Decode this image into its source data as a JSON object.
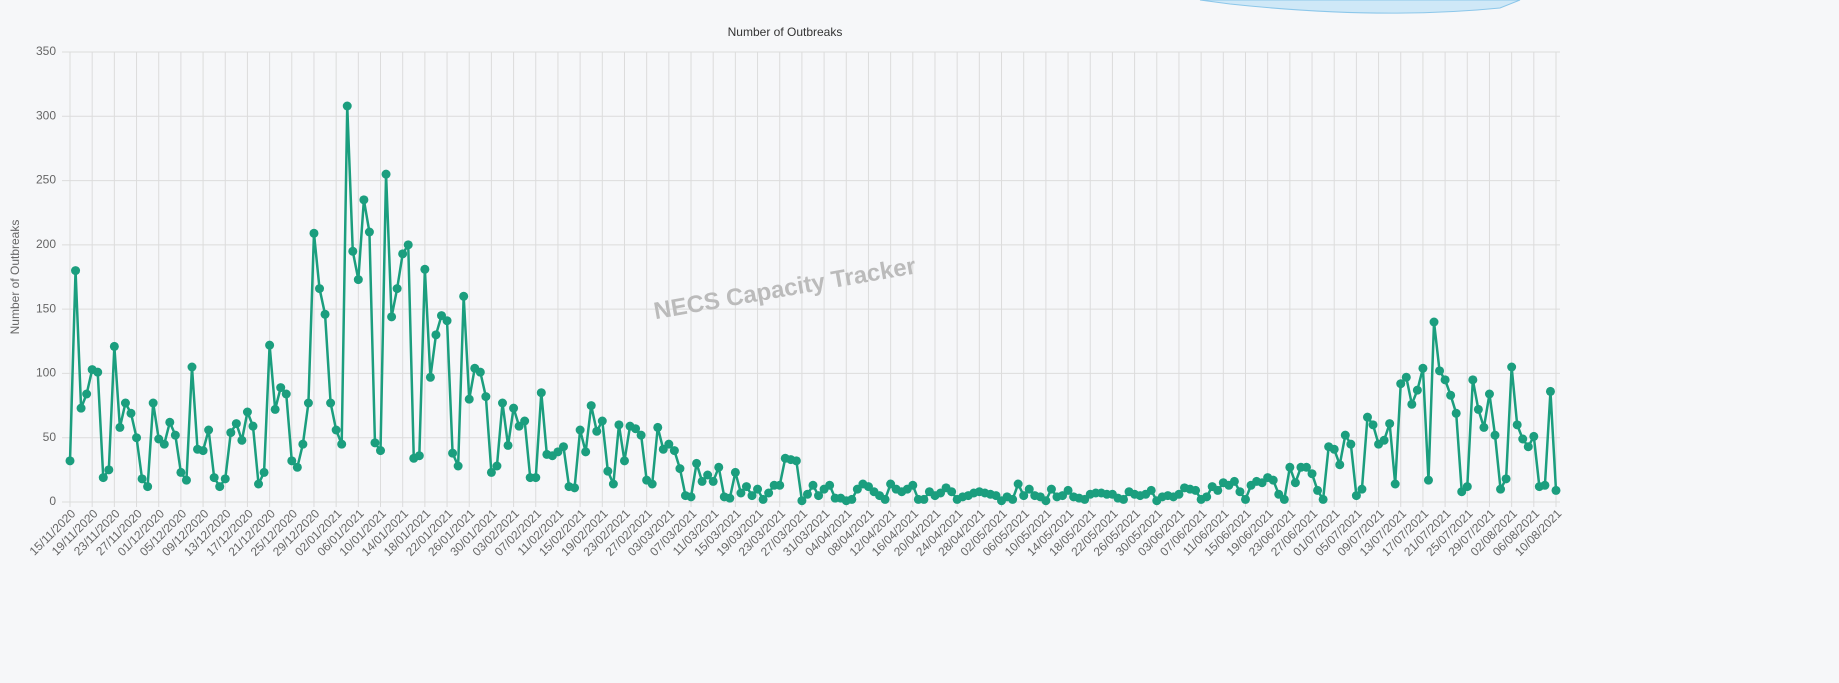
{
  "chart_data": {
    "type": "line",
    "title": "Number of Outbreaks",
    "y_label": "Number of Outbreaks",
    "watermark": "NECS Capacity Tracker",
    "color": "#1b9e7e",
    "grid": true,
    "ylim": [
      0,
      350
    ],
    "yticks": [
      0,
      50,
      100,
      150,
      200,
      250,
      300,
      350
    ],
    "categories": [
      "15/11/2020",
      null,
      null,
      null,
      "19/11/2020",
      null,
      null,
      null,
      "23/11/2020",
      null,
      null,
      null,
      "27/11/2020",
      null,
      null,
      null,
      "01/12/2020",
      null,
      null,
      null,
      "05/12/2020",
      null,
      null,
      null,
      "09/12/2020",
      null,
      null,
      null,
      "13/12/2020",
      null,
      null,
      null,
      "17/12/2020",
      null,
      null,
      null,
      "21/12/2020",
      null,
      null,
      null,
      "25/12/2020",
      null,
      null,
      null,
      "29/12/2020",
      null,
      null,
      null,
      "02/01/2021",
      null,
      null,
      null,
      "06/01/2021",
      null,
      null,
      null,
      "10/01/2021",
      null,
      null,
      null,
      "14/01/2021",
      null,
      null,
      null,
      "18/01/2021",
      null,
      null,
      null,
      "22/01/2021",
      null,
      null,
      null,
      "26/01/2021",
      null,
      null,
      null,
      "30/01/2021",
      null,
      null,
      null,
      "03/02/2021",
      null,
      null,
      null,
      "07/02/2021",
      null,
      null,
      null,
      "11/02/2021",
      null,
      null,
      null,
      "15/02/2021",
      null,
      null,
      null,
      "19/02/2021",
      null,
      null,
      null,
      "23/02/2021",
      null,
      null,
      null,
      "27/02/2021",
      null,
      null,
      null,
      "03/03/2021",
      null,
      null,
      null,
      "07/03/2021",
      null,
      null,
      null,
      "11/03/2021",
      null,
      null,
      null,
      "15/03/2021",
      null,
      null,
      null,
      "19/03/2021",
      null,
      null,
      null,
      "23/03/2021",
      null,
      null,
      null,
      "27/03/2021",
      null,
      null,
      null,
      "31/03/2021",
      null,
      null,
      null,
      "04/04/2021",
      null,
      null,
      null,
      "08/04/2021",
      null,
      null,
      null,
      "12/04/2021",
      null,
      null,
      null,
      "16/04/2021",
      null,
      null,
      null,
      "20/04/2021",
      null,
      null,
      null,
      "24/04/2021",
      null,
      null,
      null,
      "28/04/2021",
      null,
      null,
      null,
      "02/05/2021",
      null,
      null,
      null,
      "06/05/2021",
      null,
      null,
      null,
      "10/05/2021",
      null,
      null,
      null,
      "14/05/2021",
      null,
      null,
      null,
      "18/05/2021",
      null,
      null,
      null,
      "22/05/2021",
      null,
      null,
      null,
      "26/05/2021",
      null,
      null,
      null,
      "30/05/2021",
      null,
      null,
      null,
      "03/06/2021",
      null,
      null,
      null,
      "07/06/2021",
      null,
      null,
      null,
      "11/06/2021",
      null,
      null,
      null,
      "15/06/2021",
      null,
      null,
      null,
      "19/06/2021",
      null,
      null,
      null,
      "23/06/2021",
      null,
      null,
      null,
      "27/06/2021",
      null,
      null,
      null,
      "01/07/2021",
      null,
      null,
      null,
      "05/07/2021",
      null,
      null,
      null,
      "09/07/2021",
      null,
      null,
      null,
      "13/07/2021",
      null,
      null,
      null,
      "17/07/2021",
      null,
      null,
      null,
      "21/07/2021",
      null,
      null,
      null,
      "25/07/2021",
      null,
      null,
      null,
      "29/07/2021",
      null,
      null,
      null,
      "02/08/2021",
      null,
      null,
      null,
      "06/08/2021",
      null,
      null,
      null,
      "10/08/2021"
    ],
    "values": [
      32,
      180,
      73,
      84,
      103,
      101,
      19,
      25,
      121,
      58,
      77,
      69,
      50,
      18,
      12,
      77,
      49,
      45,
      62,
      52,
      23,
      17,
      105,
      41,
      40,
      56,
      19,
      12,
      18,
      54,
      61,
      48,
      70,
      59,
      14,
      23,
      122,
      72,
      89,
      84,
      32,
      27,
      45,
      77,
      209,
      166,
      146,
      77,
      56,
      45,
      308,
      195,
      173,
      235,
      210,
      46,
      40,
      255,
      144,
      166,
      193,
      200,
      34,
      36,
      181,
      97,
      130,
      145,
      141,
      38,
      28,
      160,
      80,
      104,
      101,
      82,
      23,
      28,
      77,
      44,
      73,
      59,
      63,
      19,
      19,
      85,
      37,
      36,
      39,
      43,
      12,
      11,
      56,
      39,
      75,
      55,
      63,
      24,
      14,
      60,
      32,
      59,
      57,
      52,
      17,
      14,
      58,
      41,
      45,
      40,
      26,
      5,
      4,
      30,
      16,
      21,
      16,
      27,
      4,
      3,
      23,
      7,
      12,
      5,
      10,
      2,
      7,
      13,
      13,
      34,
      33,
      32,
      1,
      6,
      13,
      5,
      10,
      13,
      3,
      3,
      1,
      2,
      10,
      14,
      12,
      8,
      5,
      2,
      14,
      10,
      8,
      10,
      13,
      2,
      2,
      8,
      5,
      7,
      11,
      8,
      2,
      4,
      5,
      7,
      8,
      7,
      6,
      5,
      1,
      4,
      2,
      14,
      5,
      10,
      5,
      4,
      1,
      10,
      4,
      5,
      9,
      4,
      3,
      2,
      6,
      7,
      7,
      6,
      6,
      3,
      2,
      8,
      6,
      5,
      6,
      9,
      1,
      4,
      5,
      4,
      6,
      11,
      10,
      9,
      2,
      4,
      12,
      9,
      15,
      13,
      16,
      8,
      2,
      13,
      16,
      15,
      19,
      17,
      6,
      2,
      27,
      15,
      27,
      27,
      22,
      9,
      2,
      43,
      41,
      29,
      52,
      45,
      5,
      10,
      66,
      60,
      45,
      48,
      61,
      14,
      92,
      97,
      76,
      87,
      104,
      17,
      140,
      102,
      95,
      83,
      69,
      8,
      12,
      95,
      72,
      58,
      84,
      52,
      10,
      18,
      105,
      60,
      49,
      43,
      51,
      12,
      13,
      86,
      9
    ]
  }
}
